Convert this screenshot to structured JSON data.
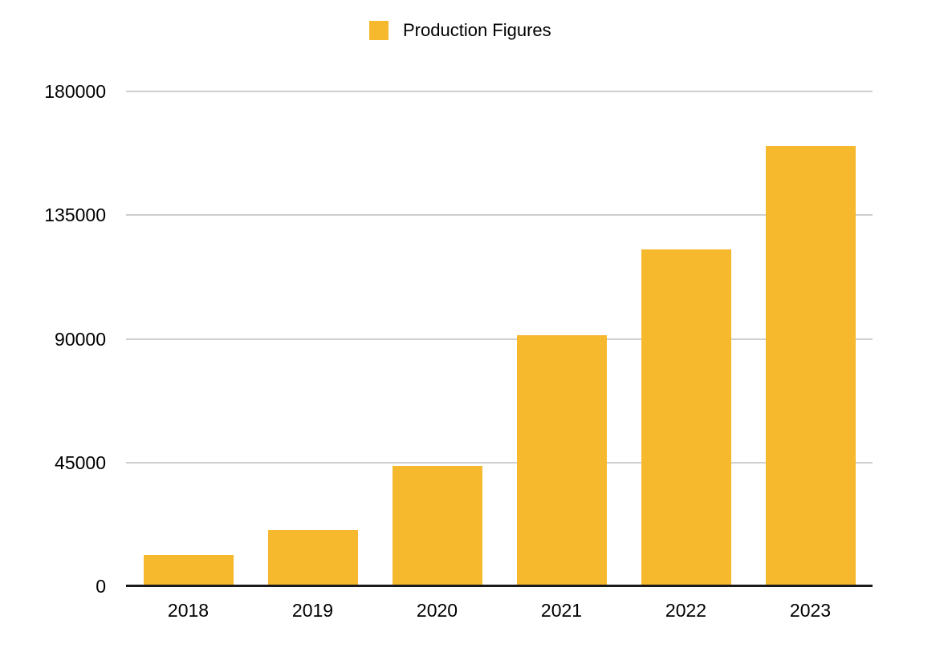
{
  "page": {
    "background_color": "#ffffff"
  },
  "chart_data": {
    "type": "bar",
    "title": "",
    "xlabel": "",
    "ylabel": "",
    "categories": [
      "2018",
      "2019",
      "2020",
      "2021",
      "2022",
      "2023"
    ],
    "series": [
      {
        "name": "Production Figures",
        "color": "#F6B82C",
        "values": [
          11348,
          20565,
          43728,
          91429,
          122486,
          160038
        ]
      }
    ],
    "ylim": [
      0,
      180000
    ],
    "yticks": [
      0,
      45000,
      90000,
      135000,
      180000
    ],
    "ytick_labels": [
      "0",
      "45000",
      "90000",
      "135000",
      "180000"
    ],
    "grid": true,
    "gridline_color": "#CFCFCF",
    "axis_line_color": "#1A1A1A",
    "text_color": "#000000",
    "legend_position": "top-center"
  }
}
